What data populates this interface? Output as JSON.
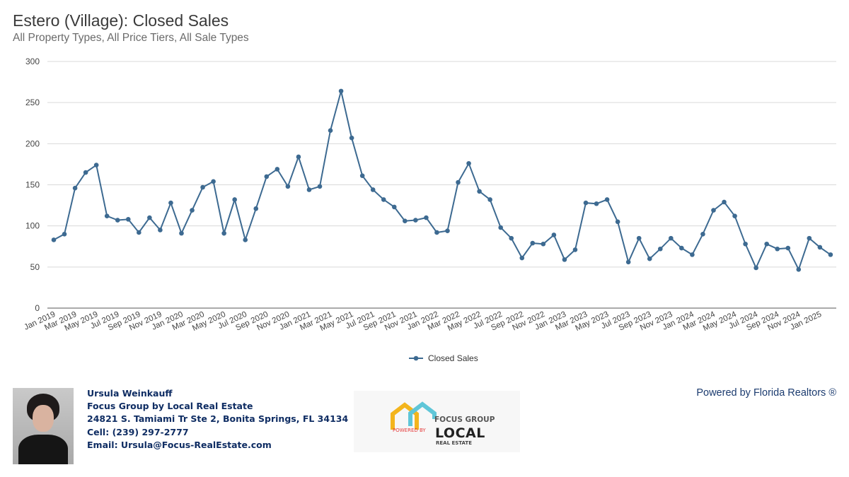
{
  "header": {
    "title": "Estero (Village): Closed Sales",
    "subtitle": "All Property Types, All Price Tiers, All Sale Types"
  },
  "chart_data": {
    "type": "line",
    "title": "Estero (Village): Closed Sales",
    "subtitle": "All Property Types, All Price Tiers, All Sale Types",
    "xlabel": "",
    "ylabel": "",
    "ylim": [
      0,
      300
    ],
    "yticks": [
      0,
      50,
      100,
      150,
      200,
      250,
      300
    ],
    "grid": true,
    "legend_position": "bottom",
    "color": "#3d6a91",
    "x": [
      "Jan 2019",
      "Feb 2019",
      "Mar 2019",
      "Apr 2019",
      "May 2019",
      "Jun 2019",
      "Jul 2019",
      "Aug 2019",
      "Sep 2019",
      "Oct 2019",
      "Nov 2019",
      "Dec 2019",
      "Jan 2020",
      "Feb 2020",
      "Mar 2020",
      "Apr 2020",
      "May 2020",
      "Jun 2020",
      "Jul 2020",
      "Aug 2020",
      "Sep 2020",
      "Oct 2020",
      "Nov 2020",
      "Dec 2020",
      "Jan 2021",
      "Feb 2021",
      "Mar 2021",
      "Apr 2021",
      "May 2021",
      "Jun 2021",
      "Jul 2021",
      "Aug 2021",
      "Sep 2021",
      "Oct 2021",
      "Nov 2021",
      "Dec 2021",
      "Jan 2022",
      "Feb 2022",
      "Mar 2022",
      "Apr 2022",
      "May 2022",
      "Jun 2022",
      "Jul 2022",
      "Aug 2022",
      "Sep 2022",
      "Oct 2022",
      "Nov 2022",
      "Dec 2022",
      "Jan 2023",
      "Feb 2023",
      "Mar 2023",
      "Apr 2023",
      "May 2023",
      "Jun 2023",
      "Jul 2023",
      "Aug 2023",
      "Sep 2023",
      "Oct 2023",
      "Nov 2023",
      "Dec 2023",
      "Jan 2024",
      "Feb 2024",
      "Mar 2024",
      "Apr 2024",
      "May 2024",
      "Jun 2024",
      "Jul 2024",
      "Aug 2024",
      "Sep 2024",
      "Oct 2024",
      "Nov 2024",
      "Dec 2024",
      "Jan 2025",
      "Feb 2025"
    ],
    "tick_labels": [
      "Jan 2019",
      "Mar 2019",
      "May 2019",
      "Jul 2019",
      "Sep 2019",
      "Nov 2019",
      "Jan 2020",
      "Mar 2020",
      "May 2020",
      "Jul 2020",
      "Sep 2020",
      "Nov 2020",
      "Jan 2021",
      "Mar 2021",
      "May 2021",
      "Jul 2021",
      "Sep 2021",
      "Nov 2021",
      "Jan 2022",
      "Mar 2022",
      "May 2022",
      "Jul 2022",
      "Sep 2022",
      "Nov 2022",
      "Jan 2023",
      "Mar 2023",
      "May 2023",
      "Jul 2023",
      "Sep 2023",
      "Nov 2023",
      "Jan 2024",
      "Mar 2024",
      "May 2024",
      "Jul 2024",
      "Sep 2024",
      "Nov 2024",
      "Jan 2025"
    ],
    "series": [
      {
        "name": "Closed Sales",
        "values": [
          83,
          90,
          146,
          165,
          174,
          112,
          107,
          108,
          92,
          110,
          95,
          128,
          91,
          119,
          147,
          154,
          91,
          132,
          83,
          121,
          160,
          169,
          148,
          184,
          144,
          148,
          216,
          264,
          207,
          161,
          144,
          132,
          123,
          106,
          107,
          110,
          92,
          94,
          153,
          176,
          142,
          132,
          98,
          85,
          61,
          79,
          78,
          89,
          59,
          71,
          128,
          127,
          132,
          105,
          56,
          85,
          60,
          72,
          85,
          73,
          65,
          90,
          119,
          129,
          112,
          78,
          49,
          78,
          72,
          73,
          47,
          85,
          74,
          65
        ]
      }
    ]
  },
  "footer": {
    "name": "Ursula Weinkauff",
    "company": "Focus Group by Local Real Estate",
    "address": "24821 S. Tamiami Tr Ste 2, Bonita Springs, FL 34134",
    "cell": "Cell: (239) 297-2777",
    "email": "Email: Ursula@Focus-RealEstate.com",
    "powered_by": "Powered by Florida Realtors ®",
    "logo": {
      "line1": "FOCUS GROUP",
      "line2": "POWERED BY",
      "line3": "LOCAL",
      "line4": "REAL ESTATE"
    }
  }
}
